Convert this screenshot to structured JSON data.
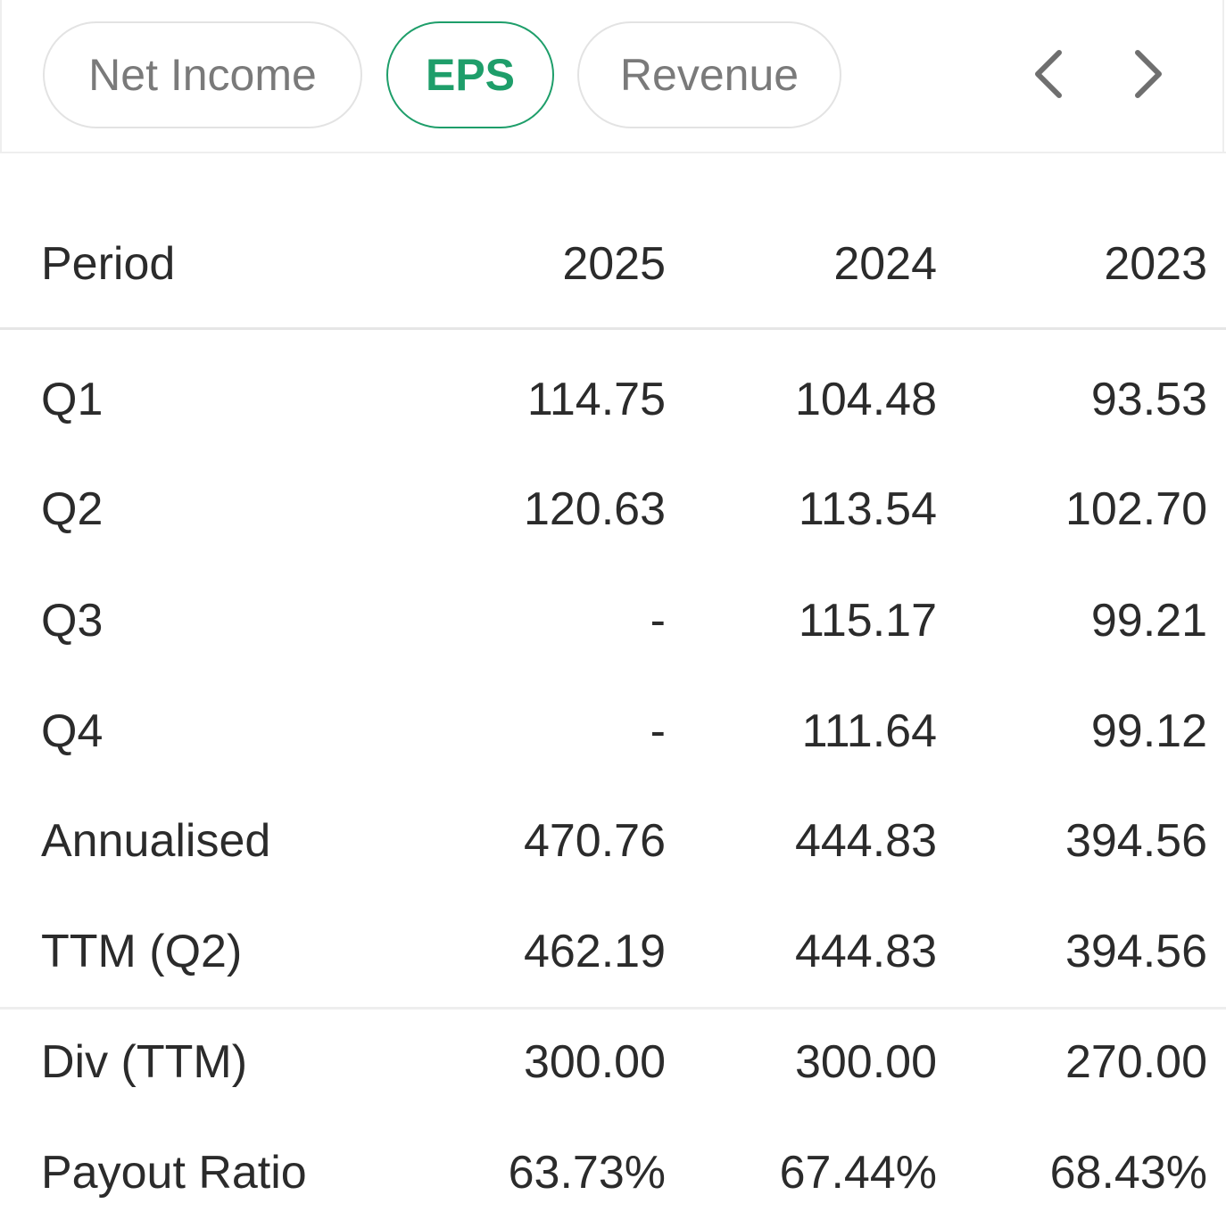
{
  "tabs": [
    {
      "label": "Net Income",
      "active": false
    },
    {
      "label": "EPS",
      "active": true
    },
    {
      "label": "Revenue",
      "active": false
    }
  ],
  "nav": {
    "prev_icon": "chevron-left-icon",
    "next_icon": "chevron-right-icon"
  },
  "colors": {
    "accent": "#1e9e6a",
    "text": "#2b2b2b",
    "muted": "#7a7a7a",
    "border": "#e3e3e3"
  },
  "table": {
    "header": {
      "label": "Period",
      "col1": "2025",
      "col2": "2024",
      "col3": "2023"
    },
    "rows": [
      {
        "label": "Q1",
        "col1": "114.75",
        "col2": "104.48",
        "col3": "93.53"
      },
      {
        "label": "Q2",
        "col1": "120.63",
        "col2": "113.54",
        "col3": "102.70"
      },
      {
        "label": "Q3",
        "col1": "-",
        "col2": "115.17",
        "col3": "99.21"
      },
      {
        "label": "Q4",
        "col1": "-",
        "col2": "111.64",
        "col3": "99.12"
      },
      {
        "label": "Annualised",
        "col1": "470.76",
        "col2": "444.83",
        "col3": "394.56"
      },
      {
        "label": "TTM (Q2)",
        "col1": "462.19",
        "col2": "444.83",
        "col3": "394.56"
      },
      {
        "label": "Div (TTM)",
        "col1": "300.00",
        "col2": "300.00",
        "col3": "270.00"
      },
      {
        "label": "Payout Ratio",
        "col1": "63.73%",
        "col2": "67.44%",
        "col3": "68.43%"
      }
    ]
  }
}
